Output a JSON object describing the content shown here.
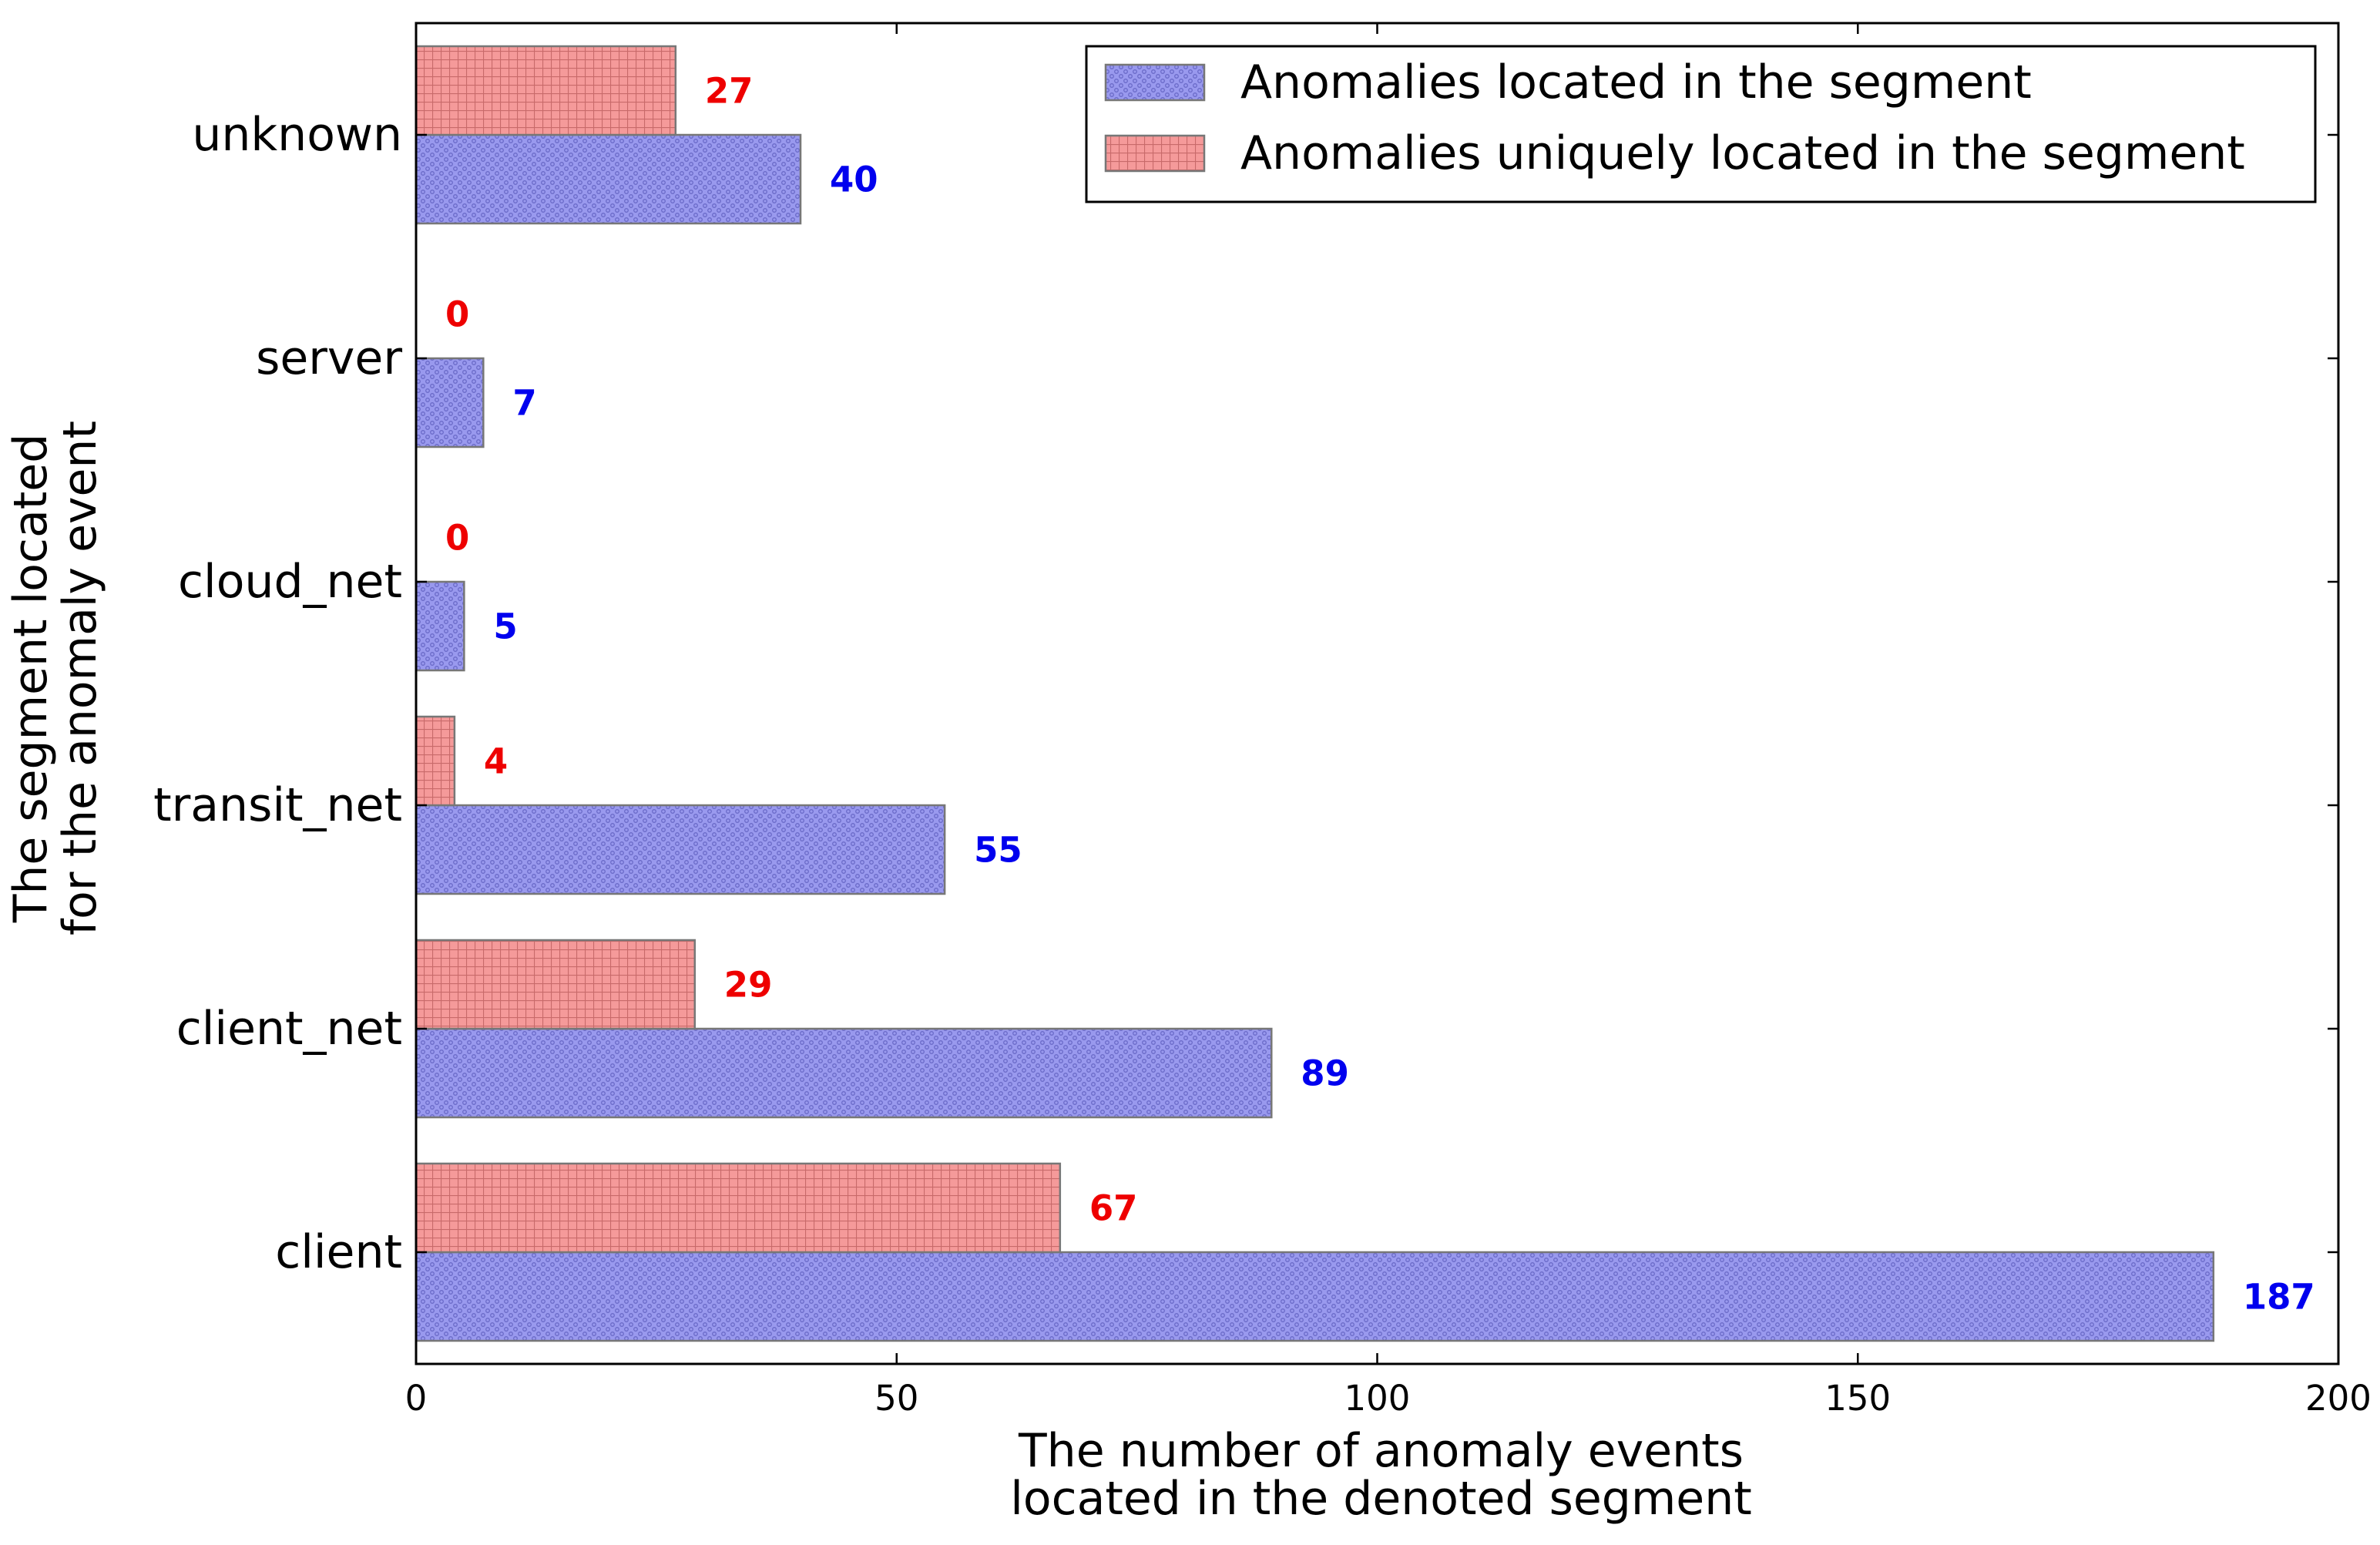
{
  "chart_data": {
    "type": "bar",
    "orientation": "horizontal",
    "categories": [
      "client",
      "client_net",
      "transit_net",
      "cloud_net",
      "server",
      "unknown"
    ],
    "series": [
      {
        "name": "Anomalies located in the segment",
        "values": [
          187,
          89,
          55,
          5,
          7,
          40
        ],
        "color": "#9999ee",
        "label_color": "#0000ee",
        "pattern": "dots"
      },
      {
        "name": "Anomalies uniquely located in the segment",
        "values": [
          67,
          29,
          4,
          0,
          0,
          27
        ],
        "color": "#f59a9a",
        "label_color": "#ee0000",
        "pattern": "grid"
      }
    ],
    "xlabel": [
      "The number of anomaly events",
      "located in the denoted segment"
    ],
    "ylabel": [
      "The segment located",
      "for the anomaly event"
    ],
    "xlim": [
      0,
      200
    ],
    "xticks": [
      0,
      50,
      100,
      150,
      200
    ],
    "grid": false,
    "legend_position": "top-right",
    "legend_order": [
      0,
      1
    ]
  }
}
